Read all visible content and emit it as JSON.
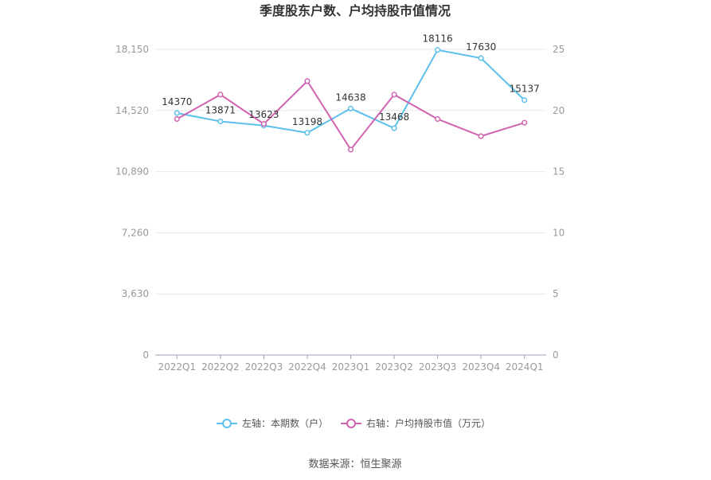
{
  "chart_data": {
    "type": "line",
    "title": "季度股东户数、户均持股市值情况",
    "categories": [
      "2022Q1",
      "2022Q2",
      "2022Q3",
      "2022Q4",
      "2023Q1",
      "2023Q2",
      "2023Q3",
      "2023Q4",
      "2024Q1"
    ],
    "left_axis": {
      "ticks": [
        "0",
        "3,630",
        "7,260",
        "10,890",
        "14,520",
        "18,150"
      ],
      "ylim": [
        0,
        18150
      ]
    },
    "right_axis": {
      "ticks": [
        "0",
        "5",
        "10",
        "15",
        "20",
        "25"
      ],
      "ylim": [
        0,
        25
      ]
    },
    "series": [
      {
        "name": "左轴：本期数（户）",
        "axis": "left",
        "color": "#5bc0eb",
        "values": [
          14370,
          13871,
          13623,
          13198,
          14638,
          13468,
          18116,
          17630,
          15137
        ],
        "labels": [
          "14370",
          "13871",
          "13623",
          "13198",
          "14638",
          "13468",
          "18116",
          "17630",
          "15137"
        ]
      },
      {
        "name": "右轴：户均持股市值（万元）",
        "axis": "right",
        "color": "#d063b0",
        "values": [
          19.3,
          21.3,
          18.9,
          22.4,
          16.8,
          21.3,
          19.3,
          17.9,
          19.0
        ]
      }
    ],
    "grid": true,
    "legend_position": "bottom"
  },
  "footer": {
    "source": "数据来源：恒生聚源"
  }
}
